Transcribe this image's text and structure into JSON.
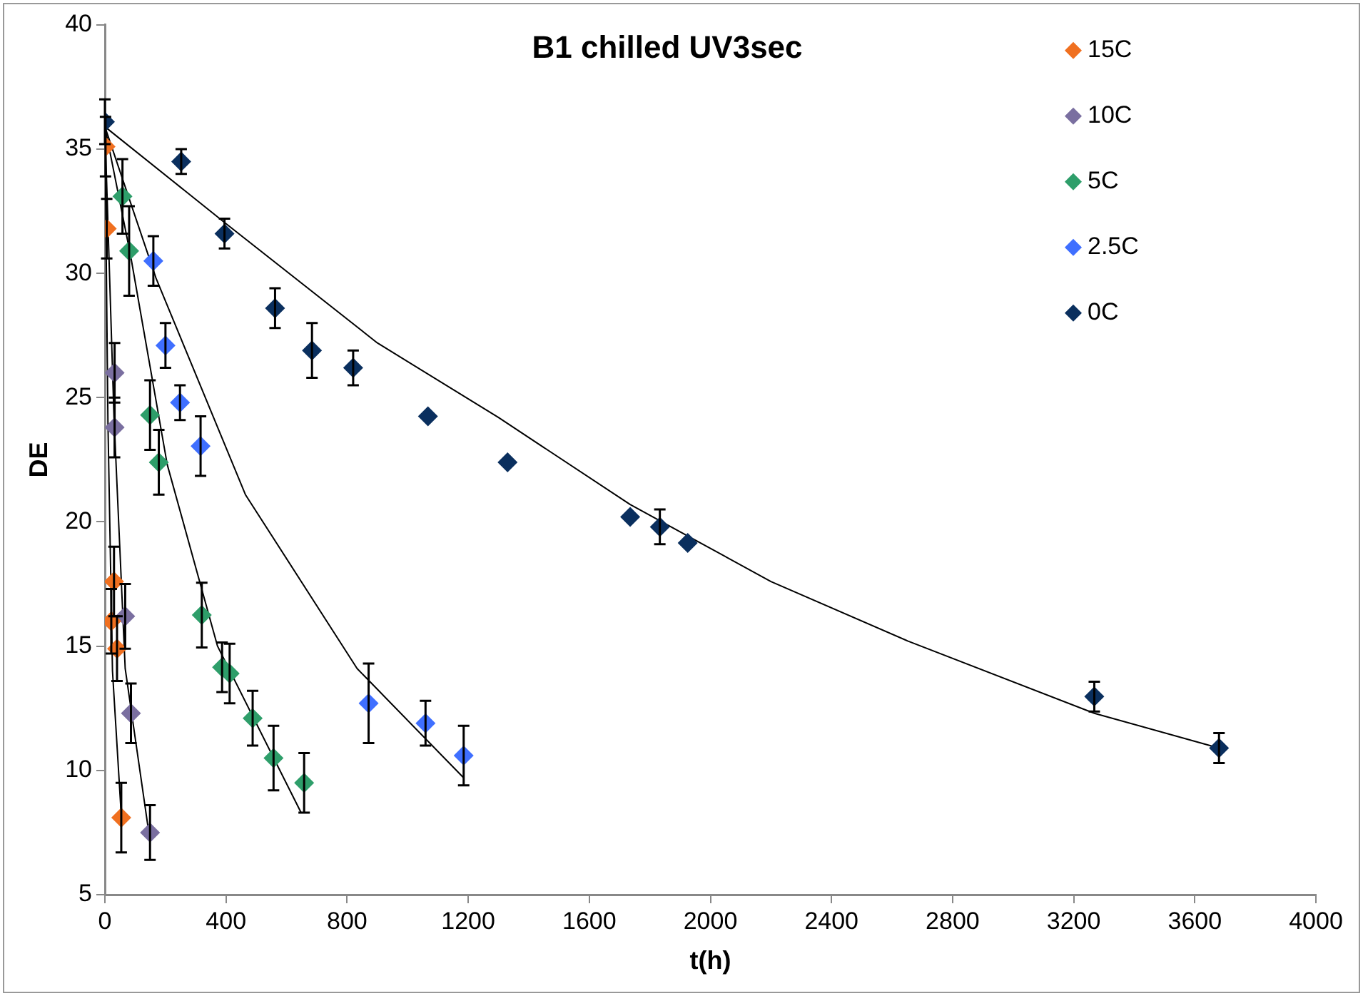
{
  "chart_data": {
    "type": "scatter",
    "title": "B1 chilled UV3sec",
    "xlabel": "t(h)",
    "ylabel": "DE",
    "xlim": [
      0,
      4000
    ],
    "xticks": [
      0,
      400,
      800,
      1200,
      1600,
      2000,
      2400,
      2800,
      3200,
      3600,
      4000
    ],
    "ylim": [
      5,
      40
    ],
    "yticks": [
      5,
      10,
      15,
      20,
      25,
      30,
      35,
      40
    ],
    "grid": false,
    "legend": "top right",
    "marker": "diamond",
    "series": [
      {
        "name": "15C",
        "color": "#f07020",
        "x": [
          2,
          6,
          30,
          21,
          40,
          54
        ],
        "values": [
          35.1,
          31.8,
          17.6,
          16.0,
          14.9,
          8.1
        ],
        "errors": [
          1.2,
          1.2,
          1.4,
          1.3,
          1.3,
          1.4
        ]
      },
      {
        "name": "10C",
        "color": "#7a6fa0",
        "x": [
          32,
          32,
          67,
          86,
          149
        ],
        "values": [
          26.0,
          23.8,
          16.2,
          12.3,
          7.5
        ],
        "errors": [
          1.2,
          1.2,
          1.3,
          1.2,
          1.1
        ]
      },
      {
        "name": "5C",
        "color": "#2e9e6a",
        "x": [
          58,
          80,
          149,
          178,
          320,
          387,
          412,
          488,
          557,
          658
        ],
        "values": [
          33.1,
          30.9,
          24.3,
          22.4,
          16.25,
          14.15,
          13.9,
          12.1,
          10.5,
          9.5
        ],
        "errors": [
          1.5,
          1.8,
          1.4,
          1.3,
          1.3,
          1.0,
          1.2,
          1.1,
          1.3,
          1.2
        ]
      },
      {
        "name": "2.5C",
        "color": "#3f6fff",
        "x": [
          160,
          200,
          248,
          316,
          871,
          1059,
          1185
        ],
        "values": [
          30.5,
          27.1,
          24.8,
          23.05,
          12.7,
          11.9,
          10.6
        ],
        "errors": [
          1.0,
          0.9,
          0.7,
          1.2,
          1.6,
          0.9,
          1.2
        ]
      },
      {
        "name": "0C",
        "color": "#0a2f5e",
        "x": [
          0,
          252,
          395,
          562,
          684,
          820,
          1067,
          1330,
          1735,
          1833,
          1925,
          3268,
          3680
        ],
        "values": [
          36.1,
          34.5,
          31.6,
          28.6,
          26.9,
          26.2,
          24.25,
          22.4,
          20.2,
          19.8,
          19.15,
          12.97,
          10.9
        ],
        "errors": [
          0.9,
          0.5,
          0.6,
          0.8,
          1.1,
          0.7,
          null,
          null,
          null,
          0.7,
          null,
          0.6,
          0.6
        ]
      },
      {
        "type": "line",
        "color": "#000000",
        "marker": "none",
        "x": [
          0,
          10,
          25,
          55
        ],
        "values": [
          35.9,
          24.0,
          14.0,
          8.0
        ]
      },
      {
        "type": "line",
        "color": "#000000",
        "marker": "none",
        "x": [
          0,
          30,
          67,
          145
        ],
        "values": [
          35.9,
          24.2,
          14.1,
          7.5
        ]
      },
      {
        "type": "line",
        "color": "#000000",
        "marker": "none",
        "x": [
          0,
          85,
          206,
          372,
          648
        ],
        "values": [
          35.9,
          30.7,
          22.3,
          15.0,
          8.3
        ]
      },
      {
        "type": "line",
        "color": "#000000",
        "marker": "none",
        "x": [
          0,
          169,
          464,
          833,
          1185
        ],
        "values": [
          35.9,
          29.8,
          21.1,
          14.1,
          9.7
        ]
      },
      {
        "type": "line",
        "color": "#000000",
        "marker": "none",
        "x": [
          0,
          400,
          900,
          1300,
          1735,
          2200,
          2653,
          3268,
          3680
        ],
        "values": [
          35.9,
          32.0,
          27.2,
          24.2,
          20.7,
          17.6,
          15.2,
          12.3,
          10.9
        ]
      }
    ]
  }
}
